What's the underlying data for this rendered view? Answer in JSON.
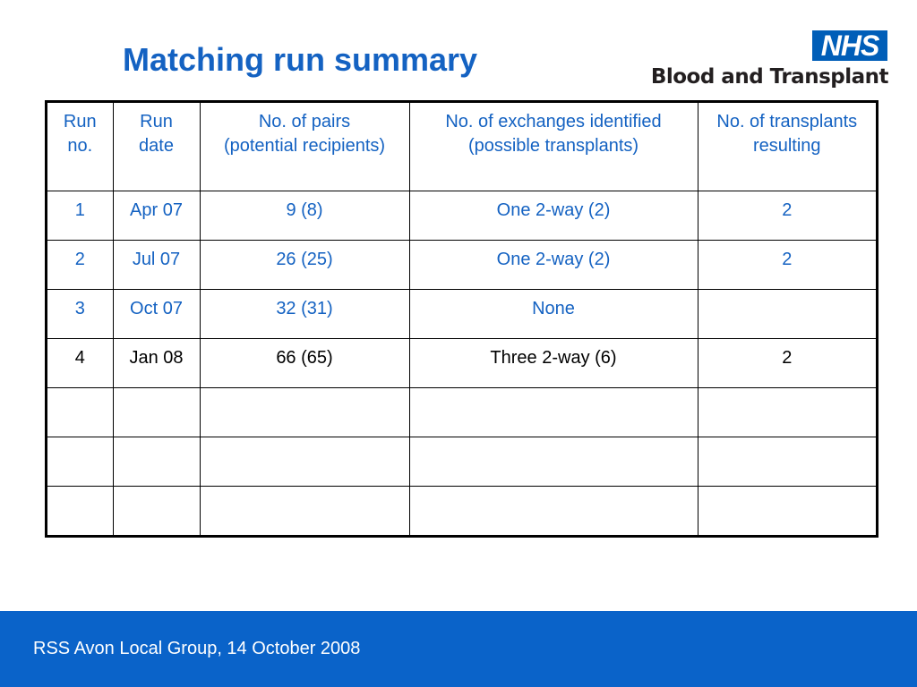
{
  "slide": {
    "title": "Matching run summary"
  },
  "logo": {
    "badge": "NHS",
    "organisation": "Blood and Transplant"
  },
  "colors": {
    "title_blue": "#1462c2",
    "nhs_blue": "#005eb8",
    "footer_blue": "#0a63c9"
  },
  "table": {
    "headers": [
      [
        "Run",
        "no."
      ],
      [
        "Run",
        "date"
      ],
      [
        "No. of pairs",
        "(potential recipients)"
      ],
      [
        "No. of exchanges identified",
        "(possible transplants)"
      ],
      [
        "No. of transplants",
        "resulting"
      ]
    ],
    "rows": [
      [
        "1",
        "Apr 07",
        "9 (8)",
        "One 2-way (2)",
        "2"
      ],
      [
        "2",
        "Jul 07",
        "26 (25)",
        "One 2-way (2)",
        "2"
      ],
      [
        "3",
        "Oct 07",
        "32 (31)",
        "None",
        ""
      ],
      [
        "4",
        "Jan 08",
        "66 (65)",
        "Three 2-way (6)",
        "2"
      ],
      [
        "",
        "",
        "",
        "",
        ""
      ],
      [
        "",
        "",
        "",
        "",
        ""
      ],
      [
        "",
        "",
        "",
        "",
        ""
      ]
    ]
  },
  "footer": {
    "text": "RSS Avon Local Group, 14 October 2008"
  }
}
